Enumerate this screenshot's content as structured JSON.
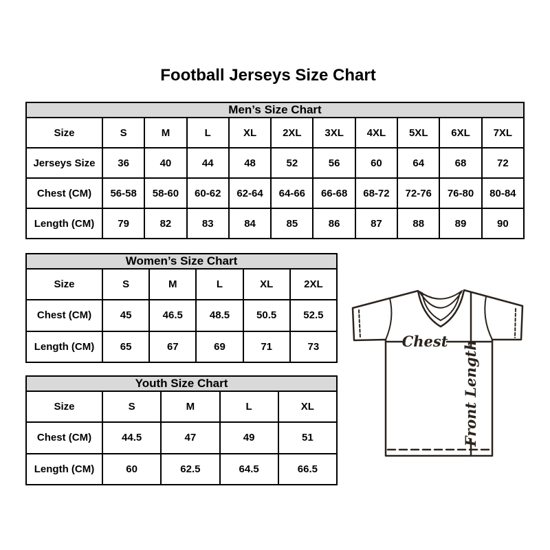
{
  "page_title": "Football Jerseys Size Chart",
  "colors": {
    "header_bg": "#d9d9d9",
    "table_border": "#000000",
    "text": "#000000",
    "diagram_line": "#2b231d"
  },
  "chart_data": [
    {
      "type": "table",
      "title": "Men’s Size Chart",
      "rows": [
        [
          "Size",
          "S",
          "M",
          "L",
          "XL",
          "2XL",
          "3XL",
          "4XL",
          "5XL",
          "6XL",
          "7XL"
        ],
        [
          "Jerseys Size",
          "36",
          "40",
          "44",
          "48",
          "52",
          "56",
          "60",
          "64",
          "68",
          "72"
        ],
        [
          "Chest (CM)",
          "56-58",
          "58-60",
          "60-62",
          "62-64",
          "64-66",
          "66-68",
          "68-72",
          "72-76",
          "76-80",
          "80-84"
        ],
        [
          "Length (CM)",
          "79",
          "82",
          "83",
          "84",
          "85",
          "86",
          "87",
          "88",
          "89",
          "90"
        ]
      ]
    },
    {
      "type": "table",
      "title": "Women’s Size Chart",
      "rows": [
        [
          "Size",
          "S",
          "M",
          "L",
          "XL",
          "2XL"
        ],
        [
          "Chest (CM)",
          "45",
          "46.5",
          "48.5",
          "50.5",
          "52.5"
        ],
        [
          "Length (CM)",
          "65",
          "67",
          "69",
          "71",
          "73"
        ]
      ]
    },
    {
      "type": "table",
      "title": "Youth Size Chart",
      "rows": [
        [
          "Size",
          "S",
          "M",
          "L",
          "XL"
        ],
        [
          "Chest (CM)",
          "44.5",
          "47",
          "49",
          "51"
        ],
        [
          "Length (CM)",
          "60",
          "62.5",
          "64.5",
          "66.5"
        ]
      ]
    }
  ],
  "diagram": {
    "chest_label": "Chest",
    "front_length_label": "Front Length"
  }
}
